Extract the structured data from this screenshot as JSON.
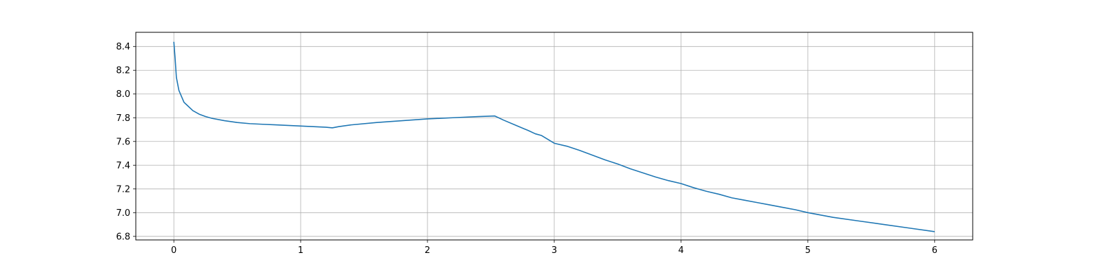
{
  "chart_data": {
    "type": "line",
    "title": "",
    "xlabel": "",
    "ylabel": "",
    "xlim": [
      -0.3,
      6.3
    ],
    "ylim": [
      6.77,
      8.52
    ],
    "grid": true,
    "x_ticks": [
      0,
      1,
      2,
      3,
      4,
      5,
      6
    ],
    "y_ticks": [
      6.8,
      7.0,
      7.2,
      7.4,
      7.6,
      7.8,
      8.0,
      8.2,
      8.4
    ],
    "x_tick_labels": [
      "0",
      "1",
      "2",
      "3",
      "4",
      "5",
      "6"
    ],
    "y_tick_labels": [
      "6.8",
      "7.0",
      "7.2",
      "7.4",
      "7.6",
      "7.8",
      "8.0",
      "8.2",
      "8.4"
    ],
    "colors": {
      "line": "#1f77b4",
      "grid": "#b0b0b0",
      "axes": "#000000"
    },
    "series": [
      {
        "x": [
          0,
          0.01,
          0.02,
          0.04,
          0.06,
          0.08,
          0.1,
          0.15,
          0.2,
          0.25,
          0.3,
          0.4,
          0.5,
          0.6,
          0.7,
          0.8,
          0.9,
          1.0,
          1.1,
          1.2,
          1.25,
          1.3,
          1.4,
          1.6,
          1.8,
          2.0,
          2.2,
          2.4,
          2.53,
          2.6,
          2.7,
          2.8,
          2.85,
          2.9,
          3.0,
          3.1,
          3.2,
          3.3,
          3.4,
          3.5,
          3.6,
          3.7,
          3.8,
          3.9,
          4.0,
          4.1,
          4.2,
          4.3,
          4.4,
          4.5,
          4.6,
          4.7,
          4.8,
          4.9,
          5.0,
          5.2,
          5.4,
          5.6,
          5.8,
          6.0
        ],
        "y": [
          8.44,
          8.3,
          8.14,
          8.03,
          7.98,
          7.93,
          7.91,
          7.86,
          7.83,
          7.81,
          7.795,
          7.775,
          7.76,
          7.75,
          7.745,
          7.74,
          7.735,
          7.73,
          7.725,
          7.72,
          7.715,
          7.725,
          7.74,
          7.76,
          7.775,
          7.79,
          7.8,
          7.81,
          7.815,
          7.78,
          7.735,
          7.69,
          7.665,
          7.65,
          7.585,
          7.56,
          7.525,
          7.485,
          7.445,
          7.41,
          7.37,
          7.335,
          7.3,
          7.27,
          7.245,
          7.21,
          7.18,
          7.155,
          7.125,
          7.105,
          7.085,
          7.065,
          7.045,
          7.025,
          7.0,
          6.96,
          6.93,
          6.9,
          6.87,
          6.84
        ]
      }
    ]
  }
}
